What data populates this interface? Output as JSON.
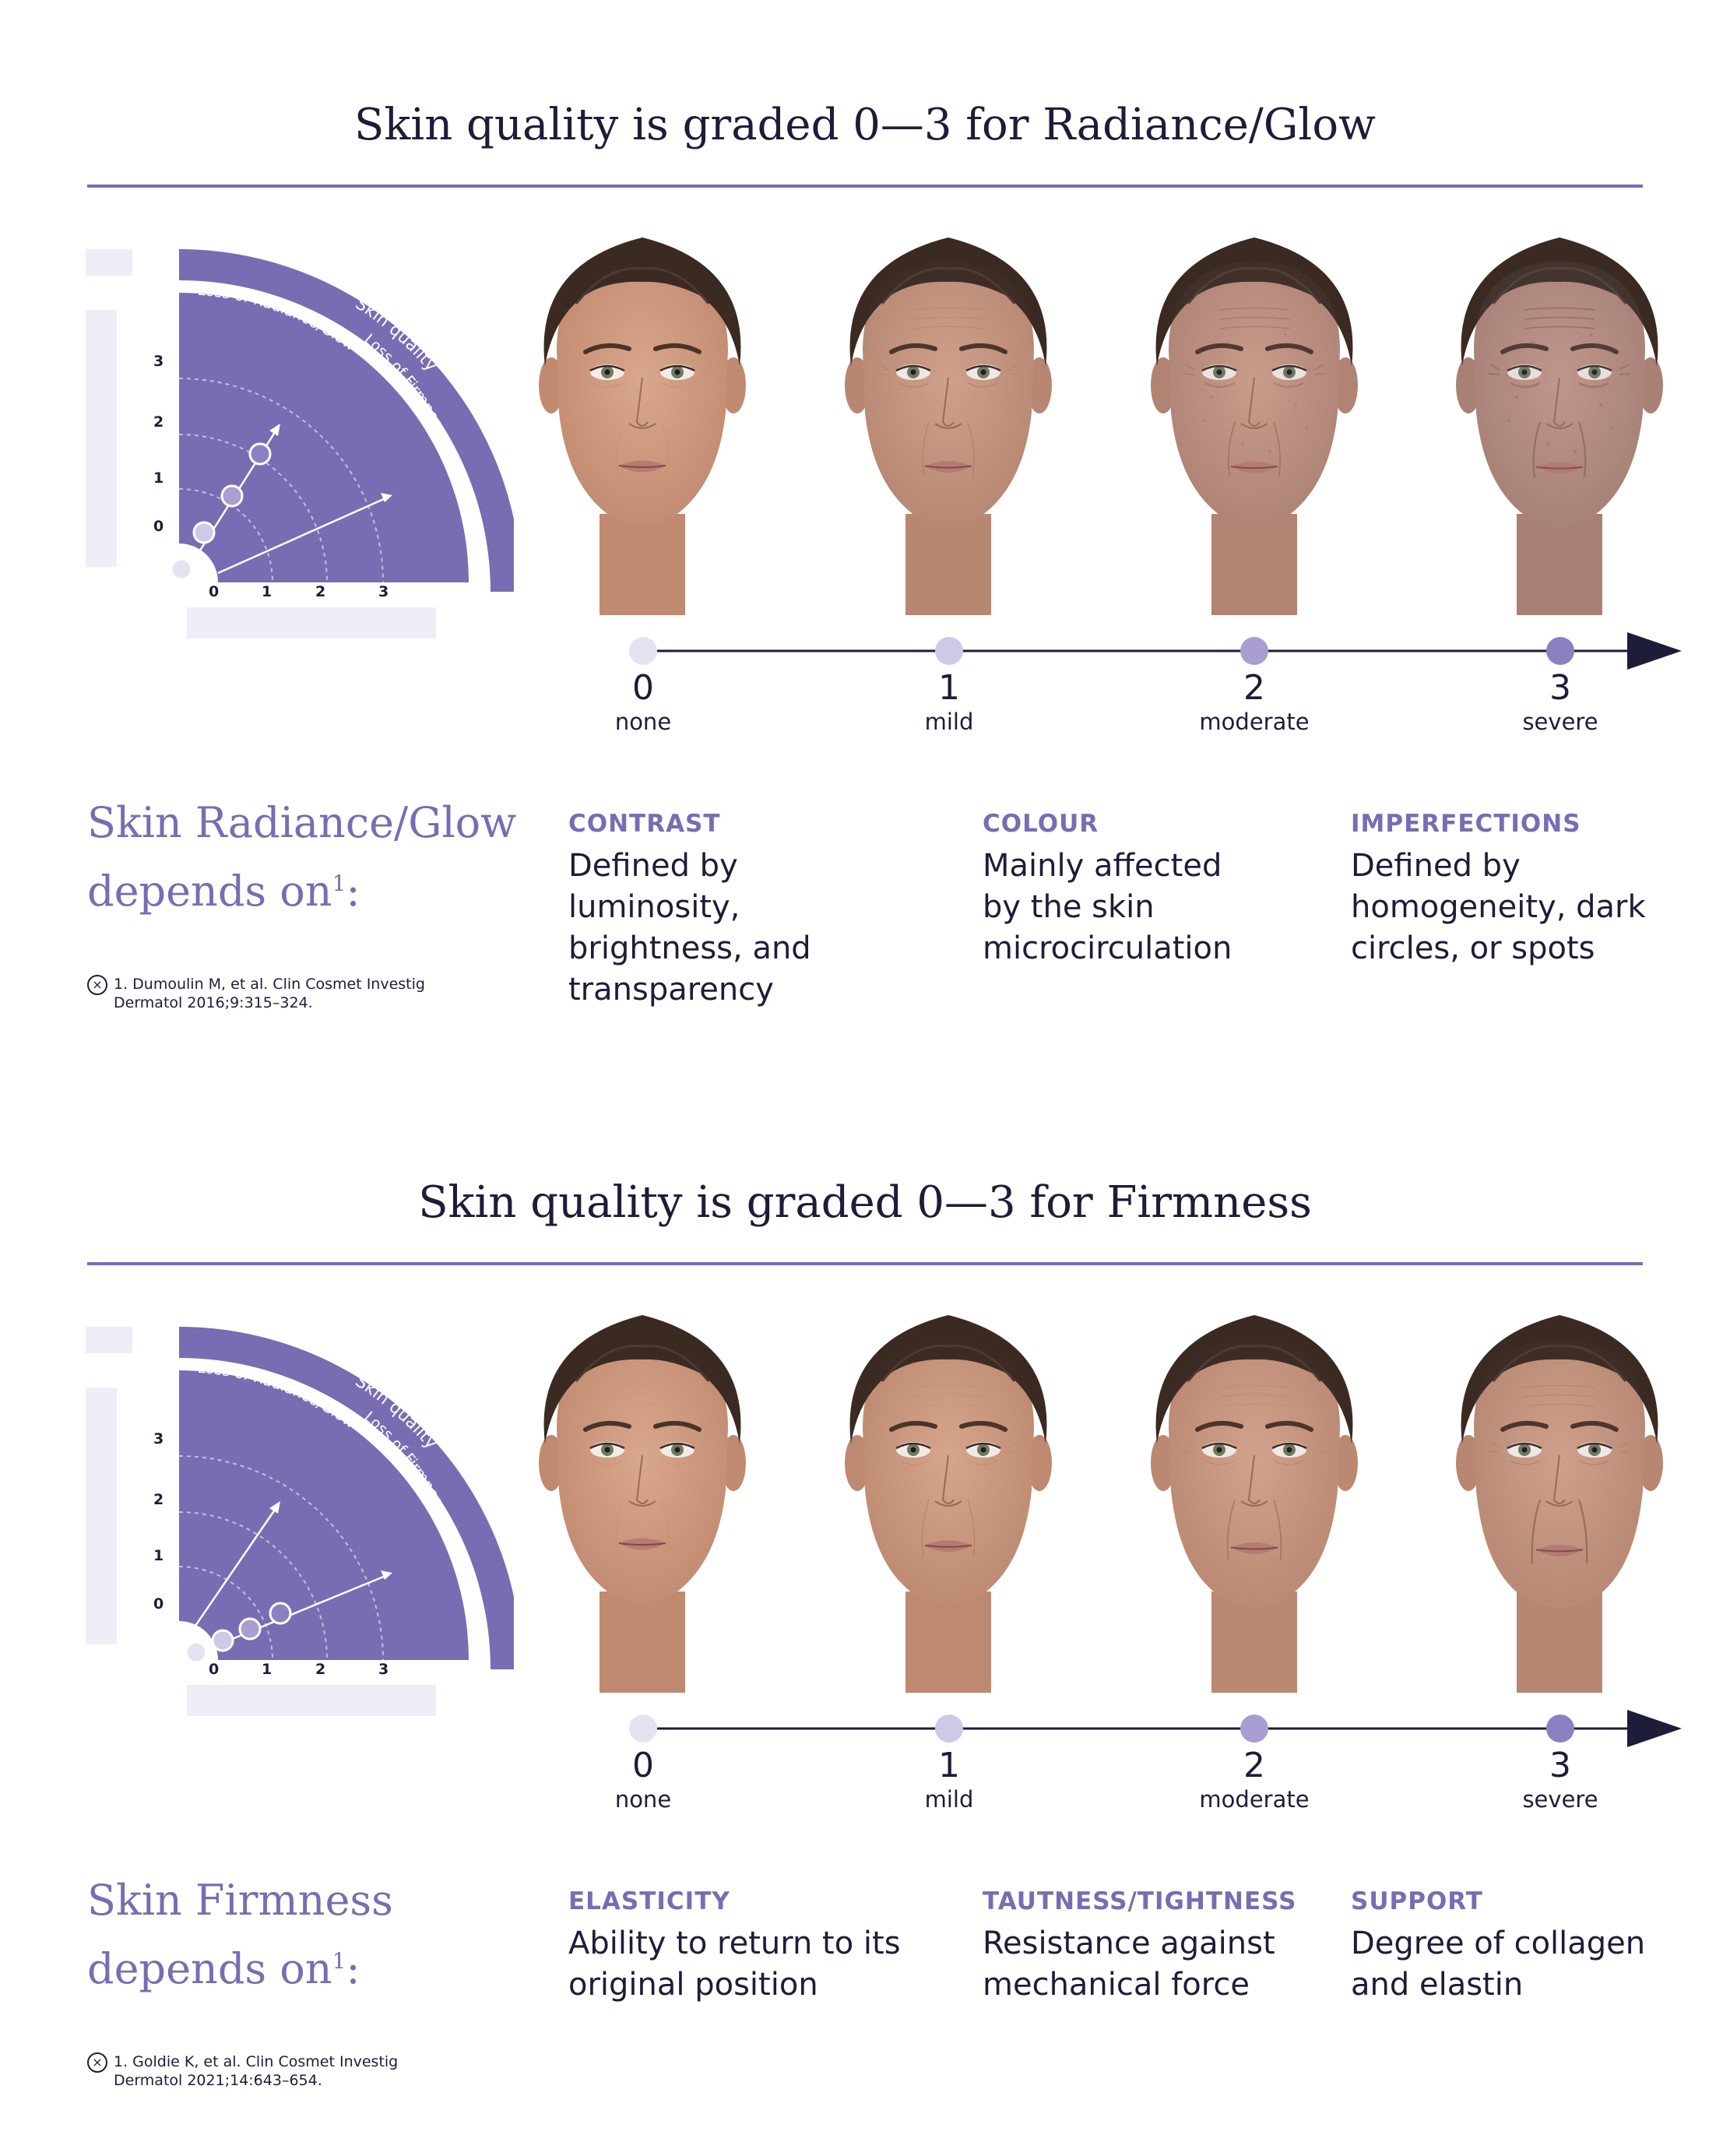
{
  "colors": {
    "accent": "#7a6cb2",
    "dark": "#1d1d3a",
    "dot0": "#e6e2f1",
    "dot1": "#cfc8e6",
    "dot2": "#a99dd1",
    "dot3": "#8d80c2"
  },
  "sections": [
    {
      "title": "Skin quality is graded 0—3 for Radiance/Glow",
      "quadrant": {
        "band_label": "Skin quality",
        "axis_a": "Loss of Radiance/Glow",
        "axis_b": "Loss of Firmness",
        "y_ticks": [
          "3",
          "2",
          "1",
          "0"
        ],
        "x_ticks": [
          "0",
          "1",
          "2",
          "3"
        ],
        "highlighted_axis": "Loss of Radiance/Glow"
      },
      "faces": [
        {
          "grade": 0,
          "level": 0.0
        },
        {
          "grade": 1,
          "level": 0.33
        },
        {
          "grade": 2,
          "level": 0.66
        },
        {
          "grade": 3,
          "level": 1.0
        }
      ],
      "grades": [
        {
          "num": "0",
          "label": "none"
        },
        {
          "num": "1",
          "label": "mild"
        },
        {
          "num": "2",
          "label": "moderate"
        },
        {
          "num": "3",
          "label": "severe"
        }
      ],
      "depends": {
        "line1": "Skin Radiance/Glow",
        "line2": "depends on",
        "sup": "1",
        "suffix": ":"
      },
      "factors": [
        {
          "head": "CONTRAST",
          "body": "Defined by luminosity, brightness, and transparency"
        },
        {
          "head": "COLOUR",
          "body": "Mainly affected by the skin microcirculation"
        },
        {
          "head": "IMPERFECTIONS",
          "body": "Defined by homogeneity, dark circles, or spots"
        }
      ],
      "reference": "1. Dumoulin M, et al. Clin Cosmet Investig Dermatol 2016;9:315–324."
    },
    {
      "title": "Skin quality is graded 0—3 for Firmness",
      "quadrant": {
        "band_label": "Skin quality",
        "axis_a": "Loss of Radiance/Glow",
        "axis_b": "Loss of Firmness",
        "y_ticks": [
          "3",
          "2",
          "1",
          "0"
        ],
        "x_ticks": [
          "0",
          "1",
          "2",
          "3"
        ],
        "highlighted_axis": "Loss of Firmness"
      },
      "faces": [
        {
          "grade": 0,
          "level": 0.0
        },
        {
          "grade": 1,
          "level": 0.33
        },
        {
          "grade": 2,
          "level": 0.66
        },
        {
          "grade": 3,
          "level": 1.0
        }
      ],
      "grades": [
        {
          "num": "0",
          "label": "none"
        },
        {
          "num": "1",
          "label": "mild"
        },
        {
          "num": "2",
          "label": "moderate"
        },
        {
          "num": "3",
          "label": "severe"
        }
      ],
      "depends": {
        "line1": "Skin Firmness",
        "line2": "depends on",
        "sup": "1",
        "suffix": ":"
      },
      "factors": [
        {
          "head": "ELASTICITY",
          "body": "Ability to return to its original position"
        },
        {
          "head": "TAUTNESS/TIGHTNESS",
          "body": "Resistance against mechanical force"
        },
        {
          "head": "SUPPORT",
          "body": "Degree of collagen and elastin"
        }
      ],
      "reference": "1. Goldie K, et al. Clin Cosmet Investig Dermatol 2021;14:643–654."
    }
  ]
}
